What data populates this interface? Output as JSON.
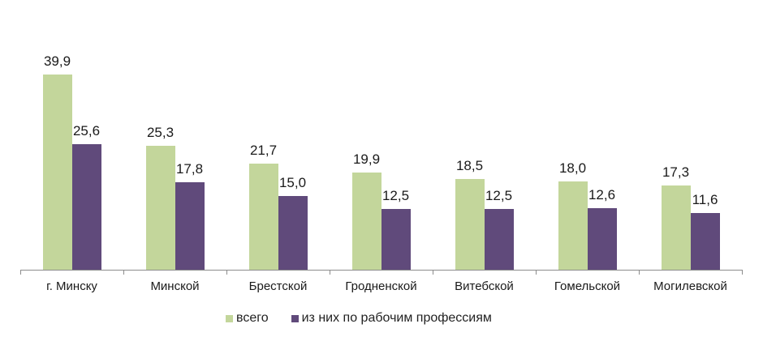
{
  "chart_data": {
    "type": "bar",
    "title": "",
    "xlabel": "",
    "ylabel": "",
    "ylim": [
      0,
      40
    ],
    "grid": false,
    "legend_position": "bottom",
    "categories": [
      "г. Минску",
      "Минской",
      "Брестской",
      "Гродненской",
      "Витебской",
      "Гомельской",
      "Могилевской"
    ],
    "series": [
      {
        "name": "всего",
        "color": "#c3d69b",
        "values": [
          39.9,
          25.3,
          21.7,
          19.9,
          18.5,
          18.0,
          17.3
        ],
        "labels": [
          "39,9",
          "25,3",
          "21,7",
          "19,9",
          "18,5",
          "18,0",
          "17,3"
        ]
      },
      {
        "name": "из них по рабочим профессиям",
        "color": "#604a7b",
        "values": [
          25.6,
          17.8,
          15.0,
          12.5,
          12.5,
          12.6,
          11.6
        ],
        "labels": [
          "25,6",
          "17,8",
          "15,0",
          "12,5",
          "12,5",
          "12,6",
          "11,6"
        ]
      }
    ]
  },
  "legend": {
    "items": [
      {
        "label": "всего",
        "color": "#c3d69b"
      },
      {
        "label": "из них по рабочим профессиям",
        "color": "#604a7b"
      }
    ]
  }
}
